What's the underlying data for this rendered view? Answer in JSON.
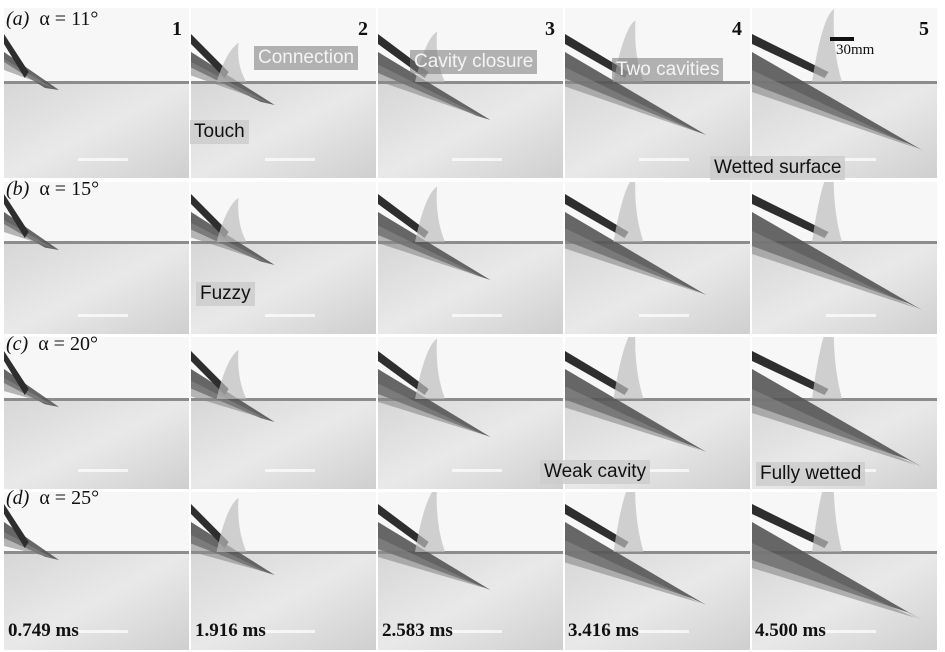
{
  "rows": [
    {
      "label": "(a)",
      "alpha": "α = 11°"
    },
    {
      "label": "(b)",
      "alpha": "α = 15°"
    },
    {
      "label": "(c)",
      "alpha": "α = 20°"
    },
    {
      "label": "(d)",
      "alpha": "α = 25°"
    }
  ],
  "columns": [
    "1",
    "2",
    "3",
    "4",
    "5"
  ],
  "times": [
    "0.749 ms",
    "1.916 ms",
    "2.583 ms",
    "3.416 ms",
    "4.500 ms"
  ],
  "scale_label": "30mm",
  "annotations": {
    "connection": "Connection",
    "touch": "Touch",
    "cavity_closure": "Cavity closure",
    "two_cavities": "Two cavities",
    "wetted_surface": "Wetted surface",
    "fuzzy": "Fuzzy",
    "weak_cavity": "Weak cavity",
    "fully_wetted": "Fully wetted"
  }
}
